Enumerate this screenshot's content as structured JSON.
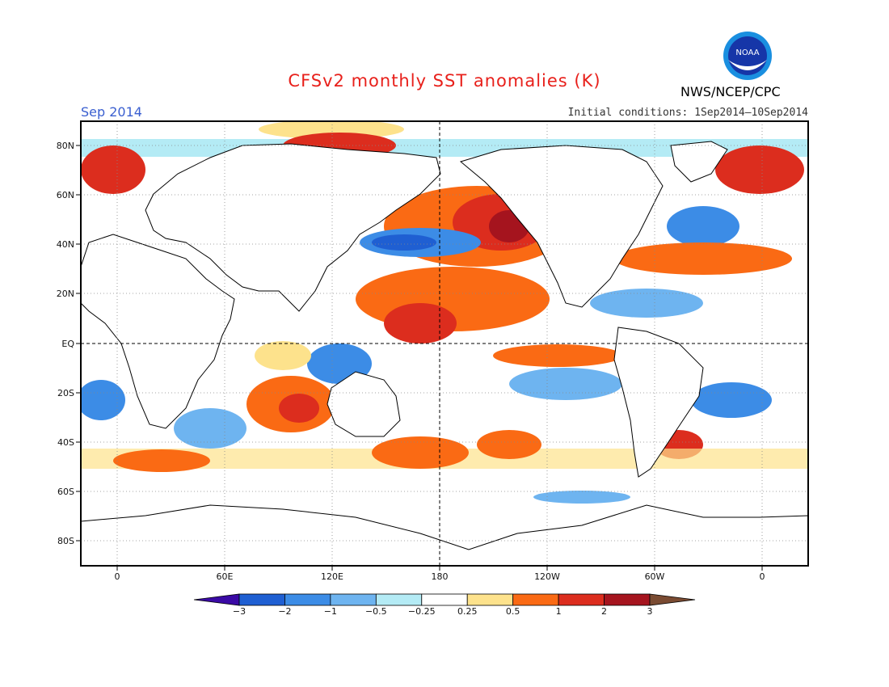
{
  "header": {
    "title": "CFSv2 monthly SST anomalies (K)",
    "month": "Sep 2014",
    "initial_conditions": "Initial conditions: 1Sep2014—10Sep2014",
    "agency": "NWS/NCEP/CPC",
    "logo_text": "NOAA"
  },
  "map": {
    "lat_labels": [
      "80N",
      "60N",
      "40N",
      "20N",
      "EQ",
      "20S",
      "40S",
      "60S",
      "80S"
    ],
    "lon_labels": [
      "0",
      "60E",
      "120E",
      "180",
      "120W",
      "60W",
      "0"
    ]
  },
  "colorbar": {
    "labels": [
      "−3",
      "−2",
      "−1",
      "−0.5",
      "−0.25",
      "0.25",
      "0.5",
      "1",
      "2",
      "3"
    ],
    "colors": [
      "#3a0aa5",
      "#1f5fd2",
      "#3c8ce6",
      "#6eb4f0",
      "#b4ebf5",
      "#ffffff",
      "#fde28c",
      "#fa6a14",
      "#dc2d1e",
      "#a5141e",
      "#7a4b32"
    ]
  },
  "colors": {
    "title": "#e8201b",
    "month": "#3a5fd0",
    "land": "#ffffff"
  }
}
